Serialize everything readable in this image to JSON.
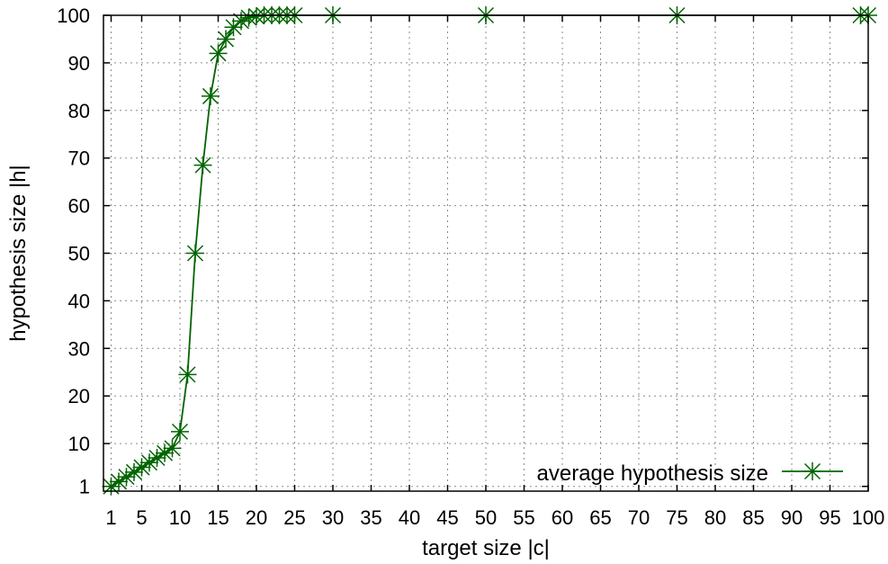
{
  "chart_data": {
    "type": "line",
    "xlabel": "target size |c|",
    "ylabel": "hypothesis size |h|",
    "xlim": [
      0,
      100
    ],
    "ylim": [
      0,
      100
    ],
    "xticks": [
      1,
      5,
      10,
      15,
      20,
      25,
      30,
      35,
      40,
      45,
      50,
      55,
      60,
      65,
      70,
      75,
      80,
      85,
      90,
      95,
      100
    ],
    "yticks": [
      1,
      10,
      20,
      30,
      40,
      50,
      60,
      70,
      80,
      90,
      100
    ],
    "grid": true,
    "legend_position": "bottom-right",
    "colors": {
      "series": "#006400",
      "grid": "#8c8c8c"
    },
    "series": [
      {
        "name": "average hypothesis size",
        "marker": "star",
        "x": [
          1,
          2,
          3,
          4,
          5,
          6,
          7,
          8,
          9,
          10,
          11,
          12,
          13,
          14,
          15,
          16,
          17,
          18,
          19,
          20,
          21,
          22,
          23,
          24,
          25,
          30,
          50,
          75,
          99,
          100
        ],
        "y": [
          1,
          2,
          3,
          4,
          5,
          6,
          7,
          8,
          9,
          12.5,
          24.5,
          50,
          68.5,
          83,
          92,
          95,
          97.5,
          98.8,
          99.5,
          99.8,
          100,
          100,
          100,
          100,
          100,
          100,
          100,
          100,
          100,
          100
        ]
      }
    ]
  }
}
